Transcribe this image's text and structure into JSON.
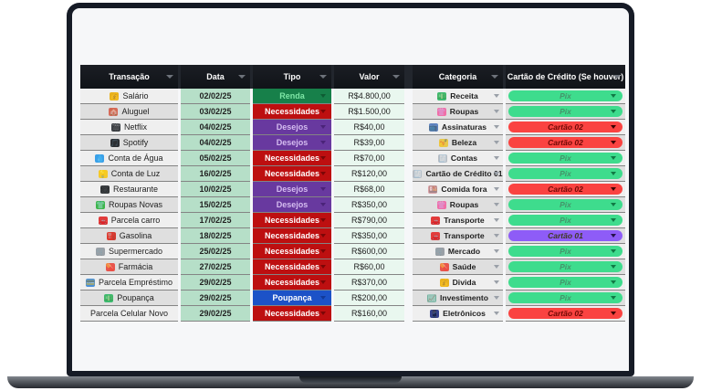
{
  "table": {
    "headers": [
      "Transação",
      "Data",
      "Tipo",
      "Valor",
      "Categoria",
      "Cartão de Crédito (Se houver)"
    ],
    "tipo_styles": {
      "Renda": {
        "bg": "#17804a",
        "text": "#7ee6a6",
        "arrow": "#0e5c33"
      },
      "Necessidades": {
        "bg": "#bd0f10",
        "text": "#ffffff",
        "arrow": "#7c0606"
      },
      "Desejos": {
        "bg": "#68399f",
        "text": "#d5bdf0",
        "arrow": "#4a2379"
      },
      "Poupança": {
        "bg": "#1c52c7",
        "text": "#ffffff",
        "arrow": "#123a99"
      }
    },
    "card_styles": {
      "Pix": {
        "bg": "#3edc8d",
        "text": "#45936a",
        "arrow": "#117a45"
      },
      "Cartão 02": {
        "bg": "#fa4341",
        "text": "#6e0905",
        "arrow": "#3d0302"
      },
      "Cartão 01": {
        "bg": "#8e5cf7",
        "text": "#3f3a1f",
        "arrow": "#26124d"
      }
    },
    "rows": [
      {
        "name": "Salário",
        "icon": {
          "name": "money-bag-icon",
          "glyph": "💰",
          "color": "#e9b11d"
        },
        "date": "02/02/25",
        "type": "Renda",
        "value": "R$4.800,00",
        "category": "Receita",
        "cat_icon": {
          "name": "banknote-icon",
          "glyph": "💵",
          "color": "#3dba6f"
        },
        "card": "Pix"
      },
      {
        "name": "Aluguel",
        "icon": {
          "name": "house-icon",
          "glyph": "🏠",
          "color": "#d66a5a"
        },
        "date": "03/02/25",
        "type": "Necessidades",
        "value": "R$1.500,00",
        "category": "Roupas",
        "cat_icon": {
          "name": "blouse-icon",
          "glyph": "👚",
          "color": "#f06fa8"
        },
        "card": "Pix"
      },
      {
        "name": "Netflix",
        "icon": {
          "name": "clapper-icon",
          "glyph": "🎬",
          "color": "#3a3f44"
        },
        "date": "04/02/25",
        "type": "Desejos",
        "value": "R$40,00",
        "category": "Assinaturas",
        "cat_icon": {
          "name": "tv-icon",
          "glyph": "📺",
          "color": "#5f84c2"
        },
        "card": "Cartão 02"
      },
      {
        "name": "Spotify",
        "icon": {
          "name": "music-note-icon",
          "glyph": "🎵",
          "color": "#2b2f33"
        },
        "date": "04/02/25",
        "type": "Desejos",
        "value": "R$39,00",
        "category": "Beleza",
        "cat_icon": {
          "name": "nail-polish-icon",
          "glyph": "💅",
          "color": "#e8c84a"
        },
        "card": "Cartão 02"
      },
      {
        "name": "Conta de Água",
        "icon": {
          "name": "droplet-icon",
          "glyph": "💧",
          "color": "#3aa0e8"
        },
        "date": "05/02/25",
        "type": "Necessidades",
        "value": "R$70,00",
        "category": "Contas",
        "cat_icon": {
          "name": "receipt-icon",
          "glyph": "🧾",
          "color": "#b8bcc2"
        },
        "card": "Pix"
      },
      {
        "name": "Conta de Luz",
        "icon": {
          "name": "light-bulb-icon",
          "glyph": "💡",
          "color": "#f5c928"
        },
        "date": "16/02/25",
        "type": "Necessidades",
        "value": "R$120,00",
        "category": "Cartão de Crédito 01",
        "cat_icon": {
          "name": "receipt-icon",
          "glyph": "🧾",
          "color": "#b8bcc2"
        },
        "card": "Pix"
      },
      {
        "name": "Restaurante",
        "icon": {
          "name": "fork-knife-icon",
          "glyph": "🍽",
          "color": "#3c4043"
        },
        "date": "10/02/25",
        "type": "Desejos",
        "value": "R$68,00",
        "category": "Comida fora",
        "cat_icon": {
          "name": "bento-box-icon",
          "glyph": "🍱",
          "color": "#d9a0a6"
        },
        "card": "Cartão 02"
      },
      {
        "name": "Roupas Novas",
        "icon": {
          "name": "tshirt-icon",
          "glyph": "👕",
          "color": "#3db54a"
        },
        "date": "15/02/25",
        "type": "Desejos",
        "value": "R$350,00",
        "category": "Roupas",
        "cat_icon": {
          "name": "blouse-icon",
          "glyph": "👚",
          "color": "#f06fa8"
        },
        "card": "Pix"
      },
      {
        "name": "Parcela carro",
        "icon": {
          "name": "car-icon",
          "glyph": "🚗",
          "color": "#e23b3b"
        },
        "date": "17/02/25",
        "type": "Necessidades",
        "value": "R$790,00",
        "category": "Transporte",
        "cat_icon": {
          "name": "car-icon",
          "glyph": "🚗",
          "color": "#e23b3b"
        },
        "card": "Pix"
      },
      {
        "name": "Gasolina",
        "icon": {
          "name": "fuel-pump-icon",
          "glyph": "⛽",
          "color": "#d6382e"
        },
        "date": "18/02/25",
        "type": "Necessidades",
        "value": "R$350,00",
        "category": "Transporte",
        "cat_icon": {
          "name": "car-icon",
          "glyph": "🚗",
          "color": "#e23b3b"
        },
        "card": "Cartão 01"
      },
      {
        "name": "Supermercado",
        "icon": {
          "name": "cart-icon",
          "glyph": "🛒",
          "color": "#9aa0a6"
        },
        "date": "25/02/25",
        "type": "Necessidades",
        "value": "R$600,00",
        "category": "Mercado",
        "cat_icon": {
          "name": "cart-icon",
          "glyph": "🛒",
          "color": "#9aa0a6"
        },
        "card": "Pix"
      },
      {
        "name": "Farmácia",
        "icon": {
          "name": "pill-icon",
          "glyph": "💊",
          "color": "#e8554d"
        },
        "date": "27/02/25",
        "type": "Necessidades",
        "value": "R$60,00",
        "category": "Saúde",
        "cat_icon": {
          "name": "pill-icon",
          "glyph": "💊",
          "color": "#e8554d"
        },
        "card": "Pix"
      },
      {
        "name": "Parcela Empréstimo",
        "icon": {
          "name": "credit-card-icon",
          "glyph": "💳",
          "color": "#4a90d9"
        },
        "date": "29/02/25",
        "type": "Necessidades",
        "value": "R$370,00",
        "category": "Divida",
        "cat_icon": {
          "name": "money-bag-icon",
          "glyph": "💰",
          "color": "#e9b11d"
        },
        "card": "Pix"
      },
      {
        "name": "Poupança",
        "icon": {
          "name": "banknote-icon",
          "glyph": "💵",
          "color": "#3dba6f"
        },
        "date": "29/02/25",
        "type": "Poupança",
        "value": "R$200,00",
        "category": "Investimento",
        "cat_icon": {
          "name": "chart-up-icon",
          "glyph": "📈",
          "color": "#57a38b"
        },
        "card": "Pix"
      },
      {
        "name": "Parcela Celular Novo",
        "icon": null,
        "date": "29/02/25",
        "type": "Necessidades",
        "value": "R$160,00",
        "category": "Eletrônicos",
        "cat_icon": {
          "name": "mobile-phone-icon",
          "glyph": "📱",
          "color": "#34408c"
        },
        "card": "Cartão 02"
      }
    ]
  }
}
